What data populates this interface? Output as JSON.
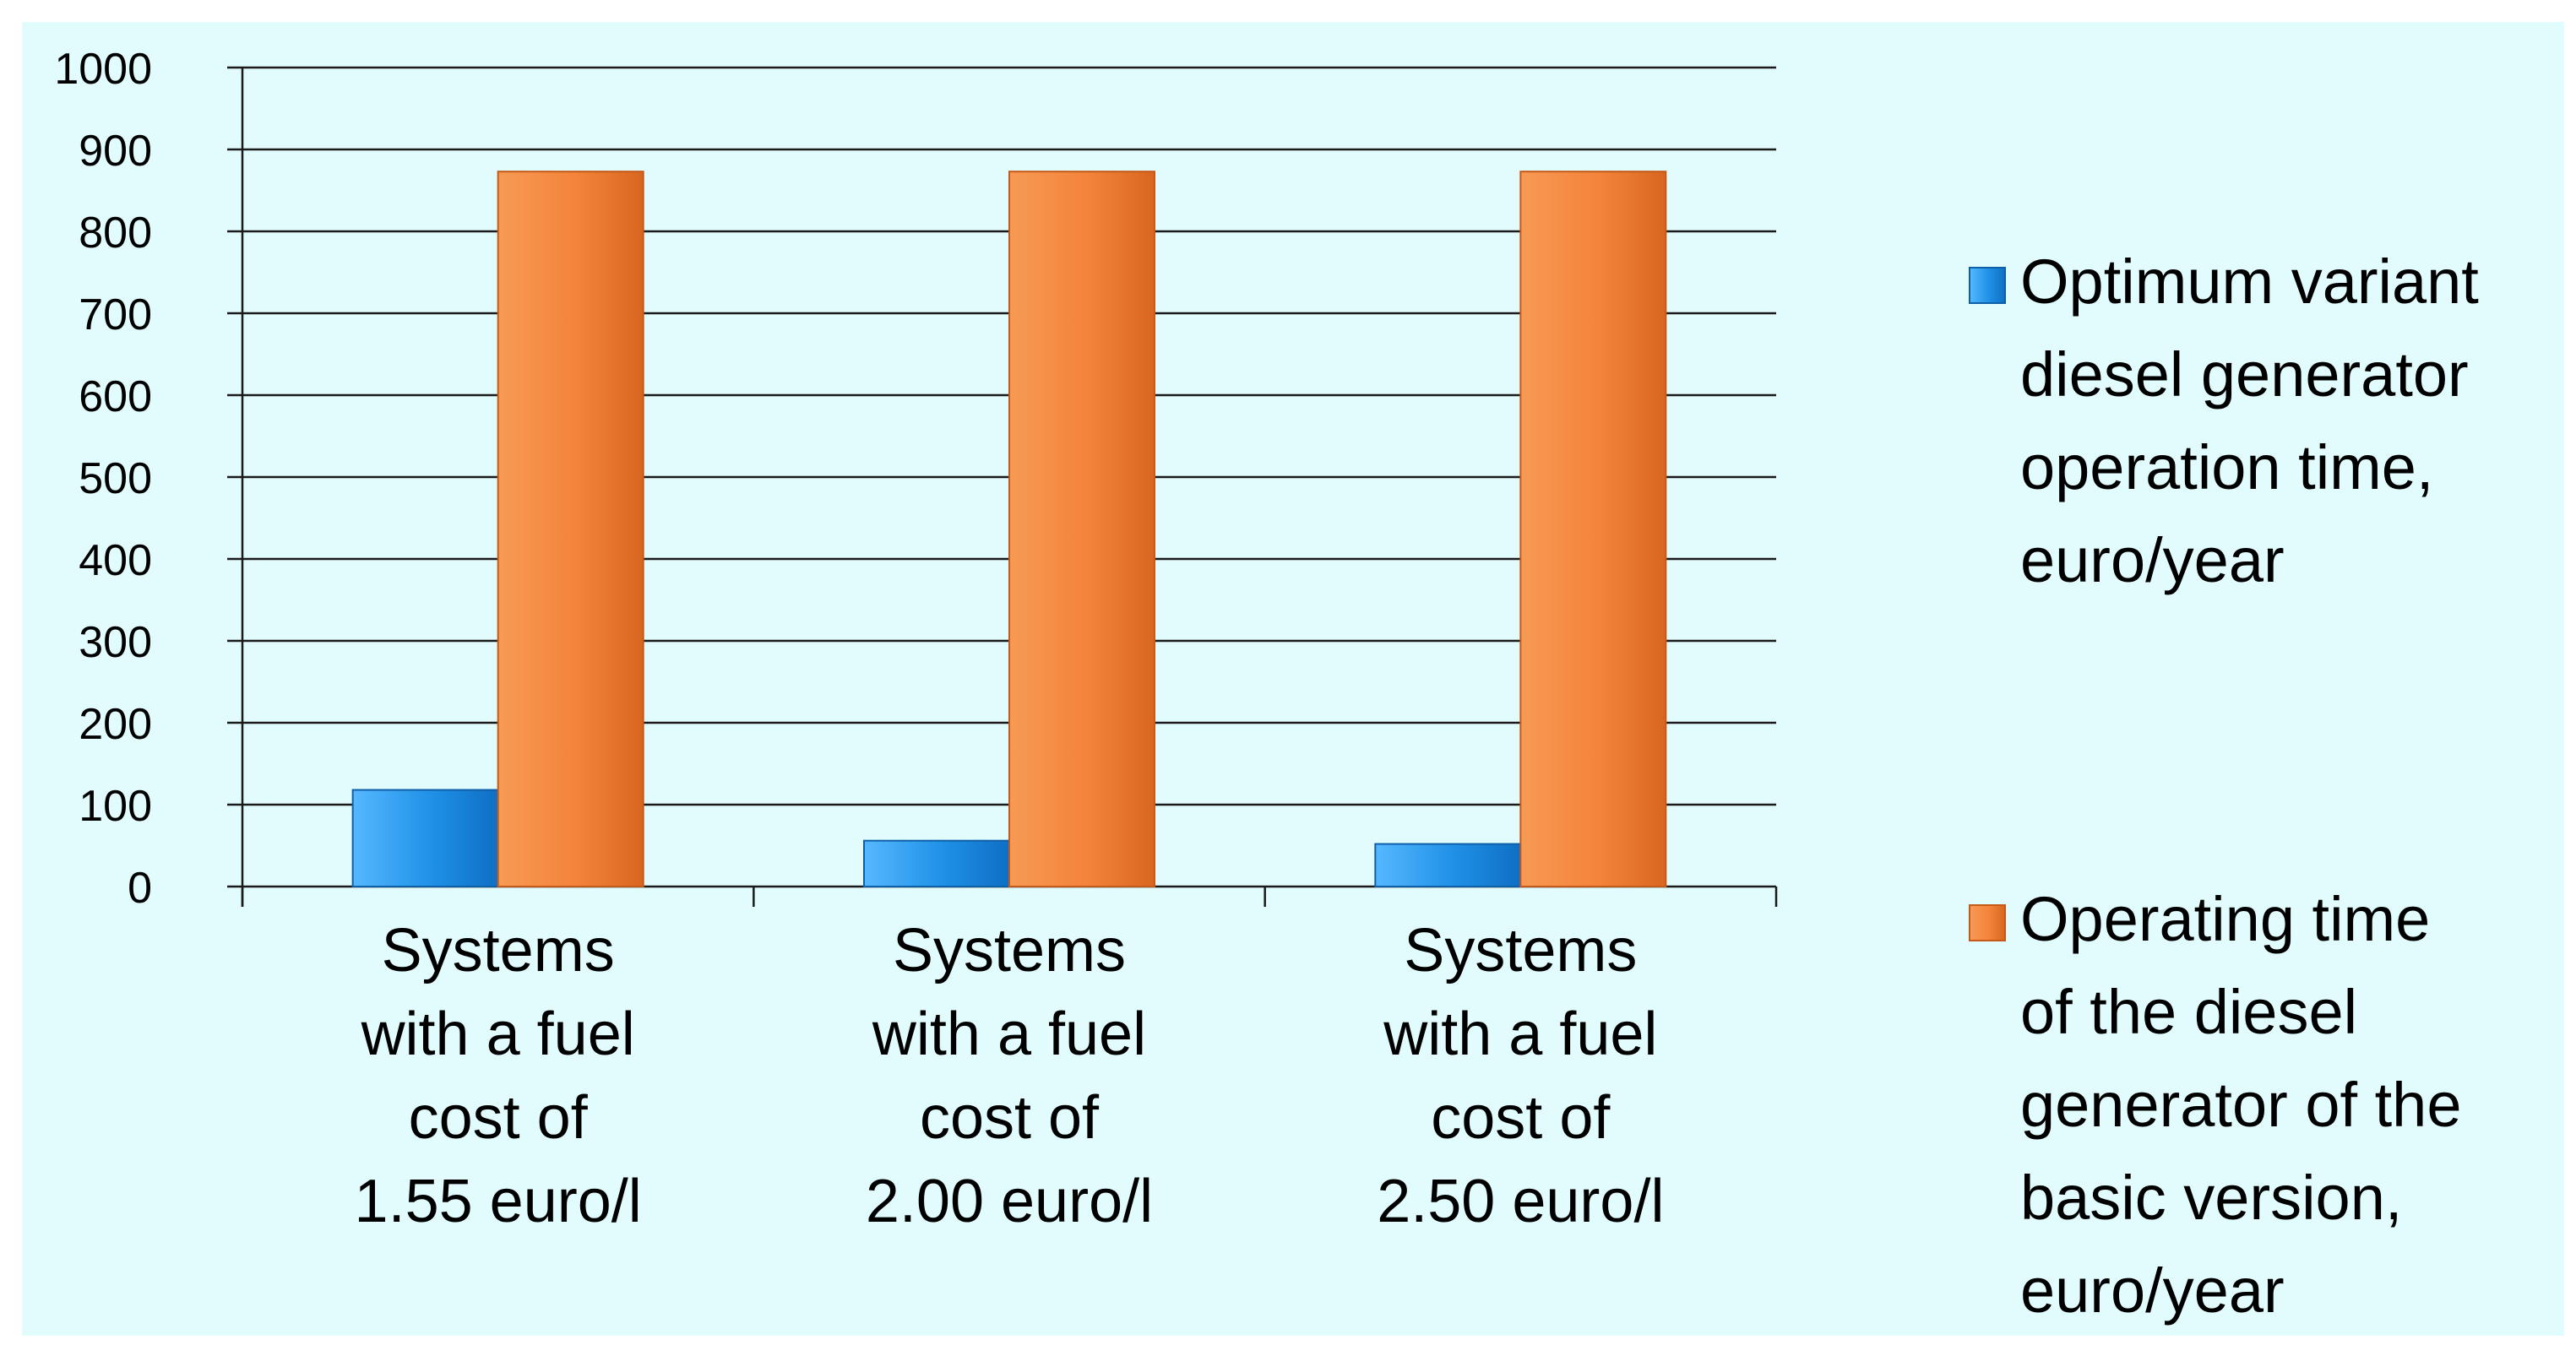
{
  "chart_data": {
    "type": "bar",
    "title": "",
    "xlabel": "",
    "ylabel": "",
    "ylim": [
      0,
      1000
    ],
    "y_ticks": [
      0,
      100,
      200,
      300,
      400,
      500,
      600,
      700,
      800,
      900,
      1000
    ],
    "grid": true,
    "legend_position": "right",
    "categories": [
      [
        "Systems",
        "with a fuel",
        "cost of",
        "1.55 euro/l"
      ],
      [
        "Systems",
        "with a fuel",
        "cost of",
        "2.00 euro/l"
      ],
      [
        "Systems",
        "with a fuel",
        "cost of",
        "2.50 euro/l"
      ]
    ],
    "series": [
      {
        "name": [
          "Optimum variant",
          "diesel generator",
          "operation time,",
          "euro/year"
        ],
        "values": [
          118,
          56,
          52
        ],
        "color": "#1e90e6"
      },
      {
        "name": [
          "Operating time",
          "of the diesel",
          "generator of the",
          "basic version,",
          "euro/year"
        ],
        "values": [
          873,
          873,
          873
        ],
        "color": "#f3833a"
      }
    ],
    "background_color": "#e2fbfc"
  }
}
